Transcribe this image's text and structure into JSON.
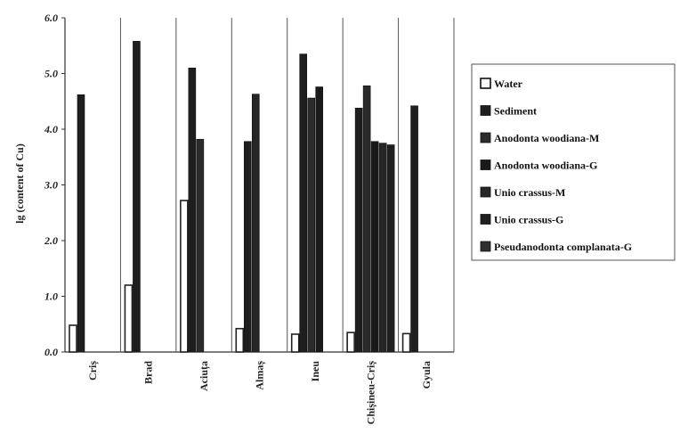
{
  "chart_data": {
    "type": "bar",
    "ylabel": "lg (content of Cu)",
    "ylim": [
      0,
      6
    ],
    "yticks": [
      "0.0",
      "1.0",
      "2.0",
      "3.0",
      "4.0",
      "5.0",
      "6.0"
    ],
    "grid": false,
    "legend_position": "right",
    "categories": [
      "Criș",
      "Brad",
      "Aciuța",
      "Almaș",
      "Ineu",
      "Chișineu-Criș",
      "Gyula"
    ],
    "series": [
      {
        "name": "Water",
        "color": "#ffffff",
        "values": [
          0.48,
          1.2,
          2.72,
          0.42,
          0.32,
          0.35,
          0.33
        ]
      },
      {
        "name": "Sediment",
        "color": "#1e1e1e",
        "values": [
          4.62,
          5.58,
          5.1,
          3.78,
          5.35,
          4.38,
          4.42
        ]
      },
      {
        "name": "Anodonta woodiana-M",
        "color": "#2b2b2b",
        "values": [
          null,
          null,
          3.82,
          null,
          4.56,
          4.78,
          null
        ]
      },
      {
        "name": "Anodonta woodiana-G",
        "color": "#1a1a1a",
        "values": [
          null,
          null,
          null,
          null,
          4.76,
          3.78,
          null
        ]
      },
      {
        "name": "Unio crassus-M",
        "color": "#262626",
        "values": [
          null,
          null,
          null,
          4.63,
          null,
          3.75,
          null
        ]
      },
      {
        "name": "Unio crassus-G",
        "color": "#202020",
        "values": [
          null,
          null,
          null,
          null,
          null,
          3.72,
          null
        ]
      },
      {
        "name": "Pseudanodonta complanata-G",
        "color": "#2f2f2f",
        "values": [
          null,
          null,
          null,
          null,
          null,
          null,
          null
        ]
      }
    ]
  }
}
